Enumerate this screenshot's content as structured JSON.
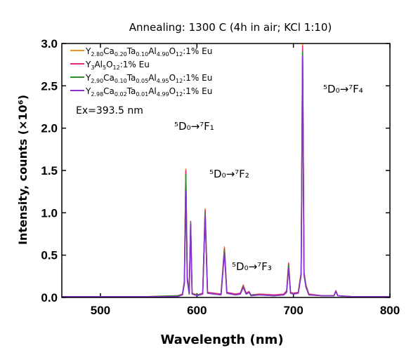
{
  "chart_data": {
    "type": "line",
    "title": "Annealing: 1300 C (4h in air; KCl 1:10)",
    "x_label": "Wavelength (nm)",
    "y_label": "Intensity, counts (×10⁶)",
    "annotations": [
      "Ex=393.5 nm",
      "⁵D₀→⁷F₁",
      "⁵D₀→⁷F₂",
      "⁵D₀→⁷F₃",
      "⁵D₀→⁷F₄"
    ],
    "x": [
      460,
      500,
      550,
      580,
      585,
      587,
      588.5,
      590,
      592,
      593.5,
      595,
      600,
      606,
      608.5,
      611,
      625,
      628.5,
      631,
      640,
      645,
      648,
      651,
      654,
      656,
      665,
      680,
      690,
      693,
      695,
      697,
      700,
      705,
      708,
      709.5,
      711,
      713,
      716,
      730,
      742,
      744,
      746,
      760,
      800
    ],
    "series": [
      {
        "name": "Y2.80Ca0.20Ta0.10Al4.90O12:1% Eu",
        "color": "#f0962e",
        "values": [
          0.01,
          0.01,
          0.01,
          0.02,
          0.04,
          0.2,
          1.52,
          0.25,
          0.05,
          0.88,
          0.05,
          0.03,
          0.05,
          1.05,
          0.06,
          0.04,
          0.6,
          0.06,
          0.04,
          0.05,
          0.15,
          0.05,
          0.07,
          0.03,
          0.04,
          0.03,
          0.04,
          0.08,
          0.41,
          0.06,
          0.05,
          0.06,
          0.3,
          3.0,
          0.3,
          0.15,
          0.04,
          0.02,
          0.02,
          0.08,
          0.02,
          0.01,
          0.01
        ]
      },
      {
        "name": "Y3Al5O12:1% Eu",
        "color": "#e8287c",
        "values": [
          0.01,
          0.01,
          0.01,
          0.02,
          0.04,
          0.19,
          1.5,
          0.24,
          0.05,
          0.9,
          0.05,
          0.03,
          0.05,
          1.03,
          0.06,
          0.04,
          0.58,
          0.06,
          0.04,
          0.05,
          0.14,
          0.05,
          0.07,
          0.03,
          0.04,
          0.03,
          0.04,
          0.08,
          0.4,
          0.06,
          0.05,
          0.06,
          0.29,
          2.97,
          0.29,
          0.14,
          0.04,
          0.02,
          0.02,
          0.08,
          0.02,
          0.01,
          0.01
        ]
      },
      {
        "name": "Y2.90Ca0.10Ta0.05Al4.95O12:1% Eu",
        "color": "#2b8f2b",
        "values": [
          0.01,
          0.01,
          0.01,
          0.02,
          0.03,
          0.18,
          1.45,
          0.23,
          0.04,
          0.88,
          0.04,
          0.03,
          0.04,
          1.0,
          0.05,
          0.03,
          0.56,
          0.05,
          0.03,
          0.04,
          0.13,
          0.04,
          0.06,
          0.03,
          0.03,
          0.02,
          0.03,
          0.07,
          0.38,
          0.05,
          0.04,
          0.05,
          0.28,
          2.9,
          0.28,
          0.13,
          0.03,
          0.02,
          0.02,
          0.07,
          0.02,
          0.01,
          0.01
        ]
      },
      {
        "name": "Y2.98Ca0.02Ta0.01Al4.99O12:1% Eu",
        "color": "#8a2fd0",
        "values": [
          0.01,
          0.01,
          0.01,
          0.01,
          0.03,
          0.16,
          1.25,
          0.2,
          0.04,
          0.86,
          0.04,
          0.02,
          0.04,
          0.97,
          0.05,
          0.03,
          0.52,
          0.05,
          0.03,
          0.04,
          0.12,
          0.04,
          0.06,
          0.02,
          0.03,
          0.02,
          0.03,
          0.06,
          0.35,
          0.05,
          0.04,
          0.05,
          0.26,
          2.85,
          0.26,
          0.12,
          0.03,
          0.02,
          0.02,
          0.07,
          0.02,
          0.01,
          0.01
        ]
      }
    ],
    "xlim": [
      460,
      800
    ],
    "xticks": [
      500,
      600,
      700,
      800
    ],
    "ylim": [
      0,
      3
    ],
    "yticks": [
      {
        "value": 0,
        "label": "0.0"
      },
      0.5,
      {
        "value": 1,
        "label": "1.0"
      },
      1.5,
      {
        "value": 2,
        "label": "2.0"
      },
      2.5,
      {
        "value": 3,
        "label": "3.0"
      }
    ],
    "legend": "upper left"
  }
}
